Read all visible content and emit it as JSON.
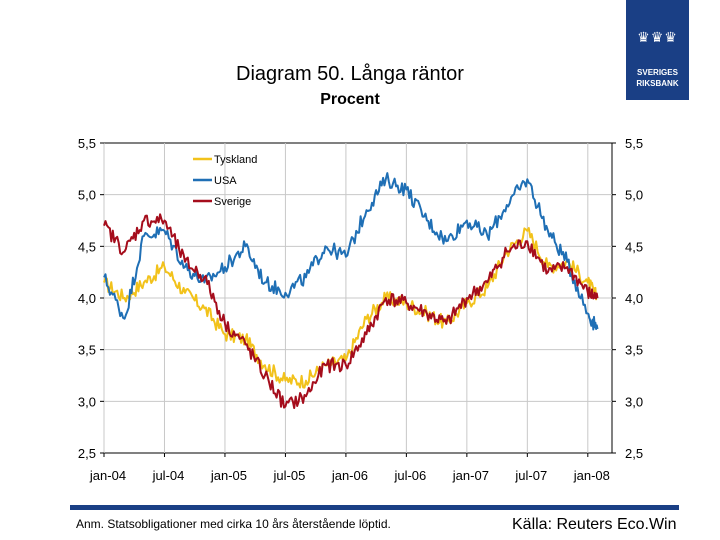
{
  "header": {
    "title": "Diagram 50. Långa räntor",
    "subtitle": "Procent"
  },
  "logo": {
    "text_line1": "SVERIGES",
    "text_line2": "RIKSBANK"
  },
  "footer": {
    "note": "Anm. Statsobligationer med cirka 10 års återstående löptid.",
    "source": "Källa: Reuters Eco.Win"
  },
  "colors": {
    "tyskland": "#f2c21b",
    "usa": "#1f6fb5",
    "sverige": "#a50d1c",
    "grid": "#c8c8c8",
    "brand": "#1a3f85"
  },
  "chart_data": {
    "type": "line",
    "title": "Diagram 50. Långa räntor",
    "subtitle": "Procent",
    "xlabel": "",
    "ylabel": "Procent",
    "ylim": [
      2.5,
      5.5
    ],
    "xlim": [
      2004.0,
      2008.2
    ],
    "y_ticks": [
      "5,5",
      "5,0",
      "4,5",
      "4,0",
      "3,5",
      "3,0",
      "2,5"
    ],
    "y_tick_values": [
      5.5,
      5.0,
      4.5,
      4.0,
      3.5,
      3.0,
      2.5
    ],
    "x_tick_labels": [
      "jan-04",
      "jul-04",
      "jan-05",
      "jul-05",
      "jan-06",
      "jul-06",
      "jan-07",
      "jul-07",
      "jan-08"
    ],
    "x_tick_values": [
      2004.0,
      2004.5,
      2005.0,
      2005.5,
      2006.0,
      2006.5,
      2007.0,
      2007.5,
      2008.0
    ],
    "grid": true,
    "legend_position": "top-left",
    "x": [
      2004.0,
      2004.17,
      2004.33,
      2004.5,
      2004.67,
      2004.83,
      2005.0,
      2005.17,
      2005.33,
      2005.5,
      2005.67,
      2005.83,
      2006.0,
      2006.17,
      2006.33,
      2006.5,
      2006.67,
      2006.83,
      2007.0,
      2007.17,
      2007.33,
      2007.5,
      2007.67,
      2007.83,
      2008.0,
      2008.08
    ],
    "series": [
      {
        "name": "Tyskland",
        "values": [
          4.15,
          4.0,
          4.15,
          4.3,
          4.05,
          3.9,
          3.65,
          3.6,
          3.35,
          3.2,
          3.2,
          3.35,
          3.4,
          3.8,
          4.0,
          3.95,
          3.85,
          3.75,
          3.95,
          4.1,
          4.45,
          4.65,
          4.3,
          4.35,
          4.15,
          4.0
        ]
      },
      {
        "name": "USA",
        "values": [
          4.2,
          3.8,
          4.6,
          4.65,
          4.3,
          4.15,
          4.3,
          4.5,
          4.15,
          4.05,
          4.2,
          4.5,
          4.4,
          4.85,
          5.15,
          5.05,
          4.75,
          4.55,
          4.75,
          4.6,
          4.9,
          5.15,
          4.65,
          4.35,
          3.85,
          3.7
        ]
      },
      {
        "name": "Sverige",
        "values": [
          4.7,
          4.45,
          4.75,
          4.75,
          4.35,
          4.2,
          3.75,
          3.55,
          3.25,
          2.95,
          3.05,
          3.35,
          3.35,
          3.65,
          4.0,
          3.95,
          3.85,
          3.75,
          4.0,
          4.15,
          4.45,
          4.55,
          4.25,
          4.3,
          4.05,
          4.0
        ]
      }
    ]
  }
}
